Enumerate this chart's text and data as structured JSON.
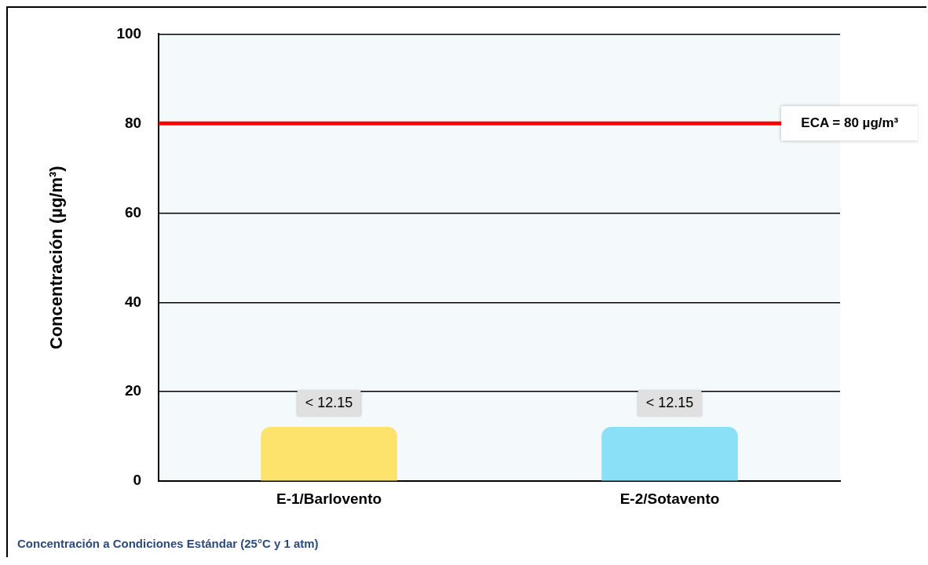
{
  "chart_data": {
    "type": "bar",
    "ylabel": "Concentración (µg/m³)",
    "categories": [
      "E-1/Barlovento",
      "E-2/Sotavento"
    ],
    "values": [
      12.15,
      12.15
    ],
    "colors": [
      "#fde36b",
      "#8ae0f7"
    ],
    "value_labels": [
      "< 12.15",
      "< 12.15"
    ],
    "ylim": [
      0,
      100
    ],
    "yticks": [
      0,
      20,
      40,
      60,
      80,
      100
    ],
    "grid": "y",
    "legend": false,
    "ref_lines": [
      {
        "axis": "y",
        "value": 80,
        "label": "ECA = 80 µg/m³",
        "color": "#ff0000"
      }
    ],
    "annotations": [
      "Concentración a Condiciones Estándar (25°C y 1 atm)"
    ]
  }
}
